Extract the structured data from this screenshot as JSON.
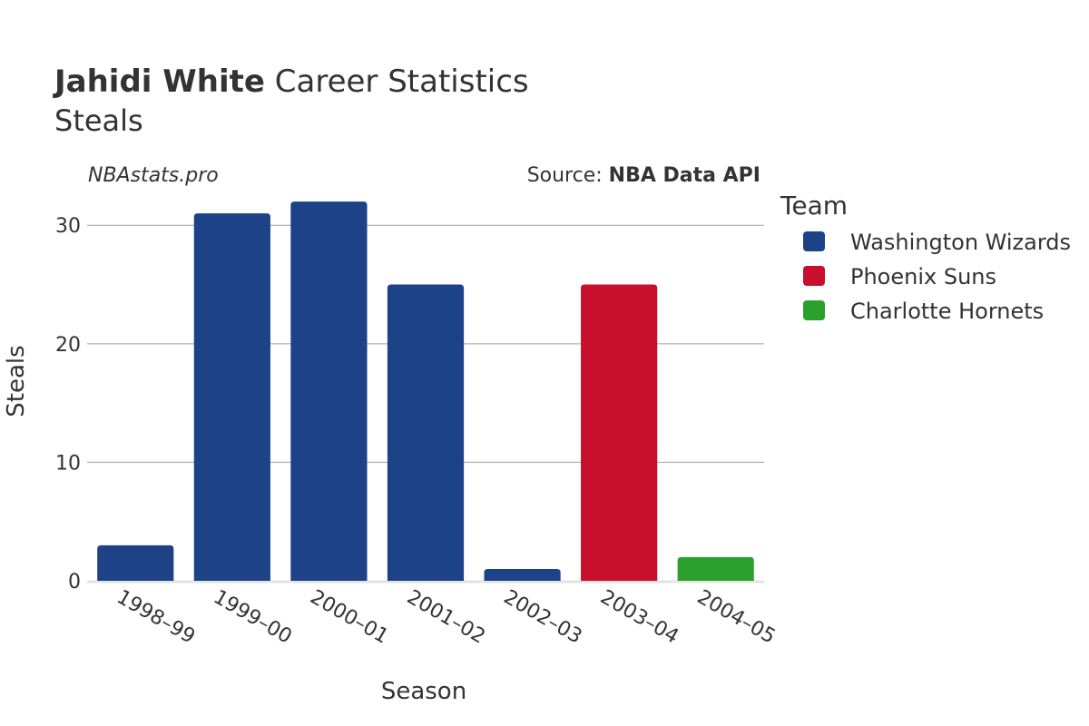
{
  "title": {
    "player": "Jahidi White",
    "rest": " Career Statistics"
  },
  "subtitle": "Steals",
  "credit": {
    "site": "NBAstats.pro",
    "source_prefix": "Source: ",
    "source_name": "NBA Data API"
  },
  "legend": {
    "title": "Team",
    "items": [
      {
        "name": "Washington Wizards",
        "color": "#1d4287"
      },
      {
        "name": "Phoenix Suns",
        "color": "#c8102e"
      },
      {
        "name": "Charlotte Hornets",
        "color": "#2ca02c"
      }
    ]
  },
  "chart_data": {
    "type": "bar",
    "title": "Jahidi White Career Statistics",
    "subtitle": "Steals",
    "xlabel": "Season",
    "ylabel": "Steals",
    "ylim": [
      0,
      34
    ],
    "yticks": [
      0,
      10,
      20,
      30
    ],
    "grid": true,
    "legend_position": "right",
    "categories": [
      "1998–99",
      "1999–00",
      "2000–01",
      "2001–02",
      "2002–03",
      "2003–04",
      "2004–05"
    ],
    "values": [
      3,
      31,
      32,
      25,
      1,
      25,
      2
    ],
    "teams": [
      "Washington Wizards",
      "Washington Wizards",
      "Washington Wizards",
      "Washington Wizards",
      "Washington Wizards",
      "Phoenix Suns",
      "Charlotte Hornets"
    ]
  }
}
